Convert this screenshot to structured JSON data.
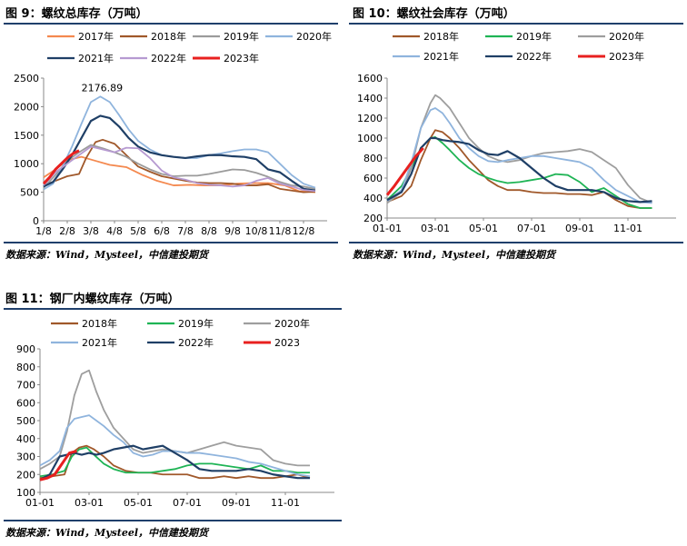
{
  "panels": [
    {
      "title": "图 9：螺纹总库存（万吨）",
      "source": "数据来源：Wind，Mysteel，中信建投期货"
    },
    {
      "title": "图 10：螺纹社会库存（万吨）",
      "source": "数据来源：Wind，Mysteel，中信建投期货"
    },
    {
      "title": "图 11：钢厂内螺纹库存（万吨）",
      "source": "数据来源：Wind，Mysteel，中信建投期货"
    }
  ],
  "colors": {
    "2017年": "#f4894f",
    "2018年": "#a0582a",
    "2019年": "#9b9b9b",
    "2020年": "#8fb4dd",
    "2021年": "#1f3f66",
    "2022年": "#b69ad1",
    "2023年": "#e8201f",
    "2019年_g": "#1fb455",
    "2020年_g": "#9e9e9e",
    "2021年_b": "#8fb4dd",
    "2022年_d": "#1f3f66",
    "rule": "#1f3f6b"
  },
  "chart_data": [
    {
      "type": "line",
      "title": "图 9：螺纹总库存（万吨）",
      "x_ticks": [
        "1/8",
        "2/8",
        "3/8",
        "4/8",
        "5/8",
        "6/8",
        "7/8",
        "8/8",
        "9/8",
        "10/8",
        "11/8",
        "12/8"
      ],
      "ylim": [
        0,
        2500
      ],
      "y_ticks": [
        0,
        500,
        1000,
        1500,
        2000,
        2500
      ],
      "annotation": "2176.89",
      "legend_position": "top",
      "series": [
        {
          "name": "2017年",
          "color": "#f4894f",
          "x": [
            0.0,
            0.5,
            1.0,
            1.6,
            2.2,
            2.8,
            3.5,
            4.2,
            4.8,
            5.5,
            6.2,
            6.8,
            7.5,
            8.2,
            8.8,
            9.5,
            10.2,
            10.8,
            11.5
          ],
          "y": [
            760,
            900,
            1060,
            1120,
            1050,
            980,
            940,
            800,
            700,
            620,
            630,
            620,
            620,
            650,
            660,
            660,
            620,
            520,
            500
          ]
        },
        {
          "name": "2018年",
          "color": "#a0582a",
          "x": [
            0.0,
            0.5,
            1.0,
            1.5,
            1.8,
            2.2,
            2.5,
            3.0,
            3.5,
            4.0,
            4.5,
            5.0,
            5.5,
            6.0,
            6.5,
            7.0,
            7.5,
            8.0,
            8.5,
            9.0,
            9.5,
            10.0,
            10.5,
            11.0,
            11.5
          ],
          "y": [
            620,
            700,
            780,
            820,
            1100,
            1380,
            1420,
            1350,
            1150,
            950,
            860,
            780,
            740,
            700,
            670,
            660,
            660,
            650,
            620,
            620,
            640,
            560,
            530,
            500,
            510
          ]
        },
        {
          "name": "2019年",
          "color": "#9b9b9b",
          "x": [
            0.0,
            0.5,
            1.0,
            1.5,
            2.0,
            2.5,
            3.0,
            3.5,
            4.0,
            4.5,
            5.0,
            5.5,
            6.0,
            6.5,
            7.0,
            7.5,
            8.0,
            8.5,
            9.0,
            9.5,
            10.0,
            10.5,
            11.0,
            11.5
          ],
          "y": [
            580,
            800,
            1050,
            1200,
            1330,
            1270,
            1200,
            1120,
            1000,
            900,
            820,
            780,
            790,
            790,
            820,
            860,
            900,
            890,
            840,
            770,
            680,
            620,
            600,
            560
          ]
        },
        {
          "name": "2020年",
          "color": "#8fb4dd",
          "x": [
            0.0,
            0.4,
            0.8,
            1.2,
            1.6,
            2.0,
            2.4,
            2.8,
            3.2,
            3.6,
            4.0,
            4.5,
            5.0,
            5.5,
            6.0,
            6.5,
            7.0,
            7.5,
            8.0,
            8.5,
            9.0,
            9.5,
            10.0,
            10.5,
            11.0,
            11.5
          ],
          "y": [
            550,
            650,
            950,
            1300,
            1700,
            2080,
            2177,
            2080,
            1850,
            1600,
            1400,
            1250,
            1150,
            1120,
            1100,
            1100,
            1150,
            1180,
            1220,
            1250,
            1250,
            1200,
            1000,
            800,
            650,
            580
          ]
        },
        {
          "name": "2021年",
          "color": "#1f3f66",
          "x": [
            0.0,
            0.4,
            0.8,
            1.2,
            1.6,
            2.0,
            2.4,
            2.8,
            3.2,
            3.6,
            4.0,
            4.5,
            5.0,
            5.5,
            6.0,
            6.5,
            7.0,
            7.5,
            8.0,
            8.5,
            9.0,
            9.5,
            10.0,
            10.5,
            11.0,
            11.5
          ],
          "y": [
            600,
            680,
            900,
            1150,
            1450,
            1750,
            1840,
            1800,
            1650,
            1450,
            1300,
            1200,
            1150,
            1120,
            1100,
            1130,
            1150,
            1150,
            1130,
            1120,
            1080,
            900,
            850,
            700,
            560,
            530
          ]
        },
        {
          "name": "2022年",
          "color": "#b69ad1",
          "x": [
            0.0,
            0.5,
            1.0,
            1.5,
            2.0,
            2.5,
            3.0,
            3.5,
            4.0,
            4.5,
            5.0,
            5.5,
            6.0,
            6.5,
            7.0,
            7.5,
            8.0,
            8.5,
            9.0,
            9.5,
            10.0,
            10.5,
            11.0,
            11.5
          ],
          "y": [
            620,
            850,
            1000,
            1150,
            1300,
            1250,
            1200,
            1280,
            1270,
            1100,
            880,
            760,
            720,
            660,
            630,
            620,
            600,
            620,
            700,
            750,
            650,
            600,
            540,
            520
          ]
        },
        {
          "name": "2023年",
          "color": "#e8201f",
          "x": [
            0.0,
            0.25,
            0.5,
            0.75,
            1.0,
            1.25,
            1.5
          ],
          "y": [
            650,
            760,
            900,
            1000,
            1100,
            1180,
            1230
          ]
        }
      ]
    },
    {
      "type": "line",
      "title": "图 10：螺纹社会库存（万吨）",
      "x_ticks": [
        "01-01",
        "03-01",
        "05-01",
        "07-01",
        "09-01",
        "11-01"
      ],
      "ylim": [
        200,
        1600
      ],
      "y_ticks": [
        200,
        400,
        600,
        800,
        1000,
        1200,
        1400,
        1600
      ],
      "legend_position": "top",
      "series": [
        {
          "name": "2018年",
          "color": "#a0582a",
          "x": [
            0.0,
            0.6,
            1.0,
            1.4,
            1.8,
            2.0,
            2.3,
            2.6,
            3.0,
            3.4,
            3.8,
            4.2,
            4.6,
            5.0,
            5.5,
            6.0,
            6.5,
            7.0,
            7.5,
            8.0,
            8.5,
            9.0,
            9.5,
            10.0,
            10.5,
            11.0
          ],
          "y": [
            360,
            420,
            520,
            780,
            1000,
            1080,
            1060,
            1000,
            900,
            780,
            680,
            580,
            520,
            480,
            480,
            460,
            450,
            450,
            440,
            440,
            430,
            460,
            380,
            320,
            300,
            300
          ]
        },
        {
          "name": "2019年",
          "color": "#1fb455",
          "x": [
            0.0,
            0.6,
            1.0,
            1.4,
            1.8,
            2.0,
            2.3,
            2.6,
            3.0,
            3.4,
            3.8,
            4.2,
            4.6,
            5.0,
            5.5,
            6.0,
            6.5,
            7.0,
            7.5,
            8.0,
            8.5,
            9.0,
            9.5,
            10.0,
            10.5,
            11.0
          ],
          "y": [
            380,
            520,
            700,
            900,
            1000,
            1010,
            950,
            880,
            780,
            700,
            640,
            600,
            570,
            550,
            560,
            580,
            600,
            640,
            630,
            560,
            460,
            500,
            420,
            340,
            300,
            300
          ]
        },
        {
          "name": "2020年",
          "color": "#9e9e9e",
          "x": [
            0.0,
            0.6,
            1.0,
            1.4,
            1.8,
            2.0,
            2.2,
            2.6,
            3.0,
            3.4,
            3.8,
            4.2,
            4.6,
            5.0,
            5.5,
            6.0,
            6.5,
            7.0,
            7.5,
            8.0,
            8.5,
            9.0,
            9.5,
            10.0,
            10.5,
            11.0
          ],
          "y": [
            350,
            460,
            700,
            1100,
            1350,
            1430,
            1400,
            1300,
            1150,
            1000,
            900,
            820,
            780,
            760,
            780,
            820,
            850,
            860,
            870,
            890,
            860,
            780,
            700,
            530,
            400,
            350
          ]
        },
        {
          "name": "2021年",
          "color": "#8fb4dd",
          "x": [
            0.0,
            0.6,
            1.0,
            1.4,
            1.8,
            2.0,
            2.3,
            2.6,
            3.0,
            3.4,
            3.8,
            4.2,
            4.6,
            5.0,
            5.5,
            6.0,
            6.5,
            7.0,
            7.5,
            8.0,
            8.5,
            9.0,
            9.5,
            10.0,
            10.5,
            11.0
          ],
          "y": [
            370,
            480,
            750,
            1100,
            1280,
            1300,
            1250,
            1150,
            1000,
            900,
            820,
            770,
            760,
            780,
            800,
            820,
            820,
            800,
            780,
            760,
            700,
            580,
            480,
            420,
            360,
            350
          ]
        },
        {
          "name": "2022年",
          "color": "#1f3f66",
          "x": [
            0.0,
            0.6,
            1.0,
            1.4,
            1.8,
            2.0,
            2.3,
            2.6,
            3.0,
            3.4,
            3.8,
            4.2,
            4.6,
            5.0,
            5.5,
            6.0,
            6.5,
            7.0,
            7.5,
            8.0,
            8.5,
            9.0,
            9.5,
            10.0,
            10.5,
            11.0
          ],
          "y": [
            380,
            460,
            640,
            900,
            1000,
            1000,
            980,
            970,
            960,
            940,
            880,
            840,
            830,
            870,
            800,
            700,
            600,
            520,
            480,
            480,
            480,
            460,
            400,
            370,
            360,
            370
          ]
        },
        {
          "name": "2023年",
          "color": "#e8201f",
          "x": [
            0.0,
            0.3,
            0.6,
            0.9,
            1.2,
            1.5
          ],
          "y": [
            430,
            520,
            620,
            720,
            820,
            900
          ]
        }
      ]
    },
    {
      "type": "line",
      "title": "图 11：钢厂内螺纹库存（万吨）",
      "x_ticks": [
        "01-01",
        "03-01",
        "05-01",
        "07-01",
        "09-01",
        "11-01"
      ],
      "ylim": [
        100,
        900
      ],
      "y_ticks": [
        100,
        200,
        300,
        400,
        500,
        600,
        700,
        800,
        900
      ],
      "legend_position": "top",
      "series": [
        {
          "name": "2018年",
          "color": "#a0582a",
          "x": [
            0.0,
            0.5,
            1.0,
            1.3,
            1.6,
            1.9,
            2.2,
            2.6,
            3.0,
            3.5,
            4.0,
            4.5,
            5.0,
            5.5,
            6.0,
            6.5,
            7.0,
            7.5,
            8.0,
            8.5,
            9.0,
            9.5,
            10.0,
            10.5,
            11.0
          ],
          "y": [
            180,
            190,
            200,
            320,
            350,
            360,
            340,
            300,
            250,
            220,
            210,
            210,
            200,
            200,
            200,
            180,
            180,
            190,
            180,
            190,
            180,
            180,
            190,
            200,
            180
          ]
        },
        {
          "name": "2019年",
          "color": "#1fb455",
          "x": [
            0.0,
            0.5,
            1.0,
            1.3,
            1.6,
            1.9,
            2.2,
            2.6,
            3.0,
            3.5,
            4.0,
            4.5,
            5.0,
            5.5,
            6.0,
            6.5,
            7.0,
            7.5,
            8.0,
            8.5,
            9.0,
            9.5,
            10.0,
            10.5,
            11.0
          ],
          "y": [
            190,
            200,
            220,
            300,
            340,
            350,
            310,
            260,
            230,
            210,
            210,
            210,
            220,
            230,
            250,
            260,
            260,
            250,
            240,
            230,
            250,
            220,
            220,
            210,
            210
          ]
        },
        {
          "name": "2020年",
          "color": "#9e9e9e",
          "x": [
            0.0,
            0.4,
            0.8,
            1.1,
            1.4,
            1.7,
            2.0,
            2.3,
            2.6,
            3.0,
            3.4,
            3.8,
            4.2,
            4.6,
            5.0,
            5.5,
            6.0,
            6.5,
            7.0,
            7.5,
            8.0,
            8.5,
            9.0,
            9.5,
            10.0,
            10.5,
            11.0
          ],
          "y": [
            230,
            260,
            300,
            440,
            640,
            760,
            780,
            660,
            560,
            460,
            400,
            340,
            320,
            330,
            340,
            330,
            320,
            340,
            360,
            380,
            360,
            350,
            340,
            280,
            260,
            250,
            250
          ]
        },
        {
          "name": "2021年",
          "color": "#8fb4dd",
          "x": [
            0.0,
            0.4,
            0.8,
            1.1,
            1.4,
            1.7,
            2.0,
            2.3,
            2.6,
            3.0,
            3.4,
            3.8,
            4.2,
            4.6,
            5.0,
            5.5,
            6.0,
            6.5,
            7.0,
            7.5,
            8.0,
            8.5,
            9.0,
            9.5,
            10.0,
            10.5,
            11.0
          ],
          "y": [
            250,
            280,
            330,
            460,
            510,
            520,
            530,
            500,
            470,
            420,
            380,
            320,
            300,
            310,
            330,
            330,
            320,
            320,
            310,
            300,
            290,
            270,
            260,
            240,
            220,
            200,
            190
          ]
        },
        {
          "name": "2022年",
          "color": "#1f3f66",
          "x": [
            0.0,
            0.4,
            0.8,
            1.1,
            1.4,
            1.7,
            2.0,
            2.3,
            2.6,
            3.0,
            3.4,
            3.8,
            4.2,
            4.6,
            5.0,
            5.5,
            6.0,
            6.5,
            7.0,
            7.5,
            8.0,
            8.5,
            9.0,
            9.5,
            10.0,
            10.5,
            11.0
          ],
          "y": [
            170,
            200,
            300,
            310,
            320,
            310,
            320,
            310,
            320,
            340,
            350,
            360,
            340,
            350,
            360,
            320,
            280,
            230,
            220,
            220,
            220,
            230,
            220,
            200,
            190,
            180,
            180
          ]
        },
        {
          "name": "2023",
          "color": "#e8201f",
          "x": [
            0.0,
            0.3,
            0.6,
            0.9,
            1.2,
            1.5
          ],
          "y": [
            170,
            180,
            200,
            260,
            320,
            330
          ]
        }
      ]
    }
  ]
}
